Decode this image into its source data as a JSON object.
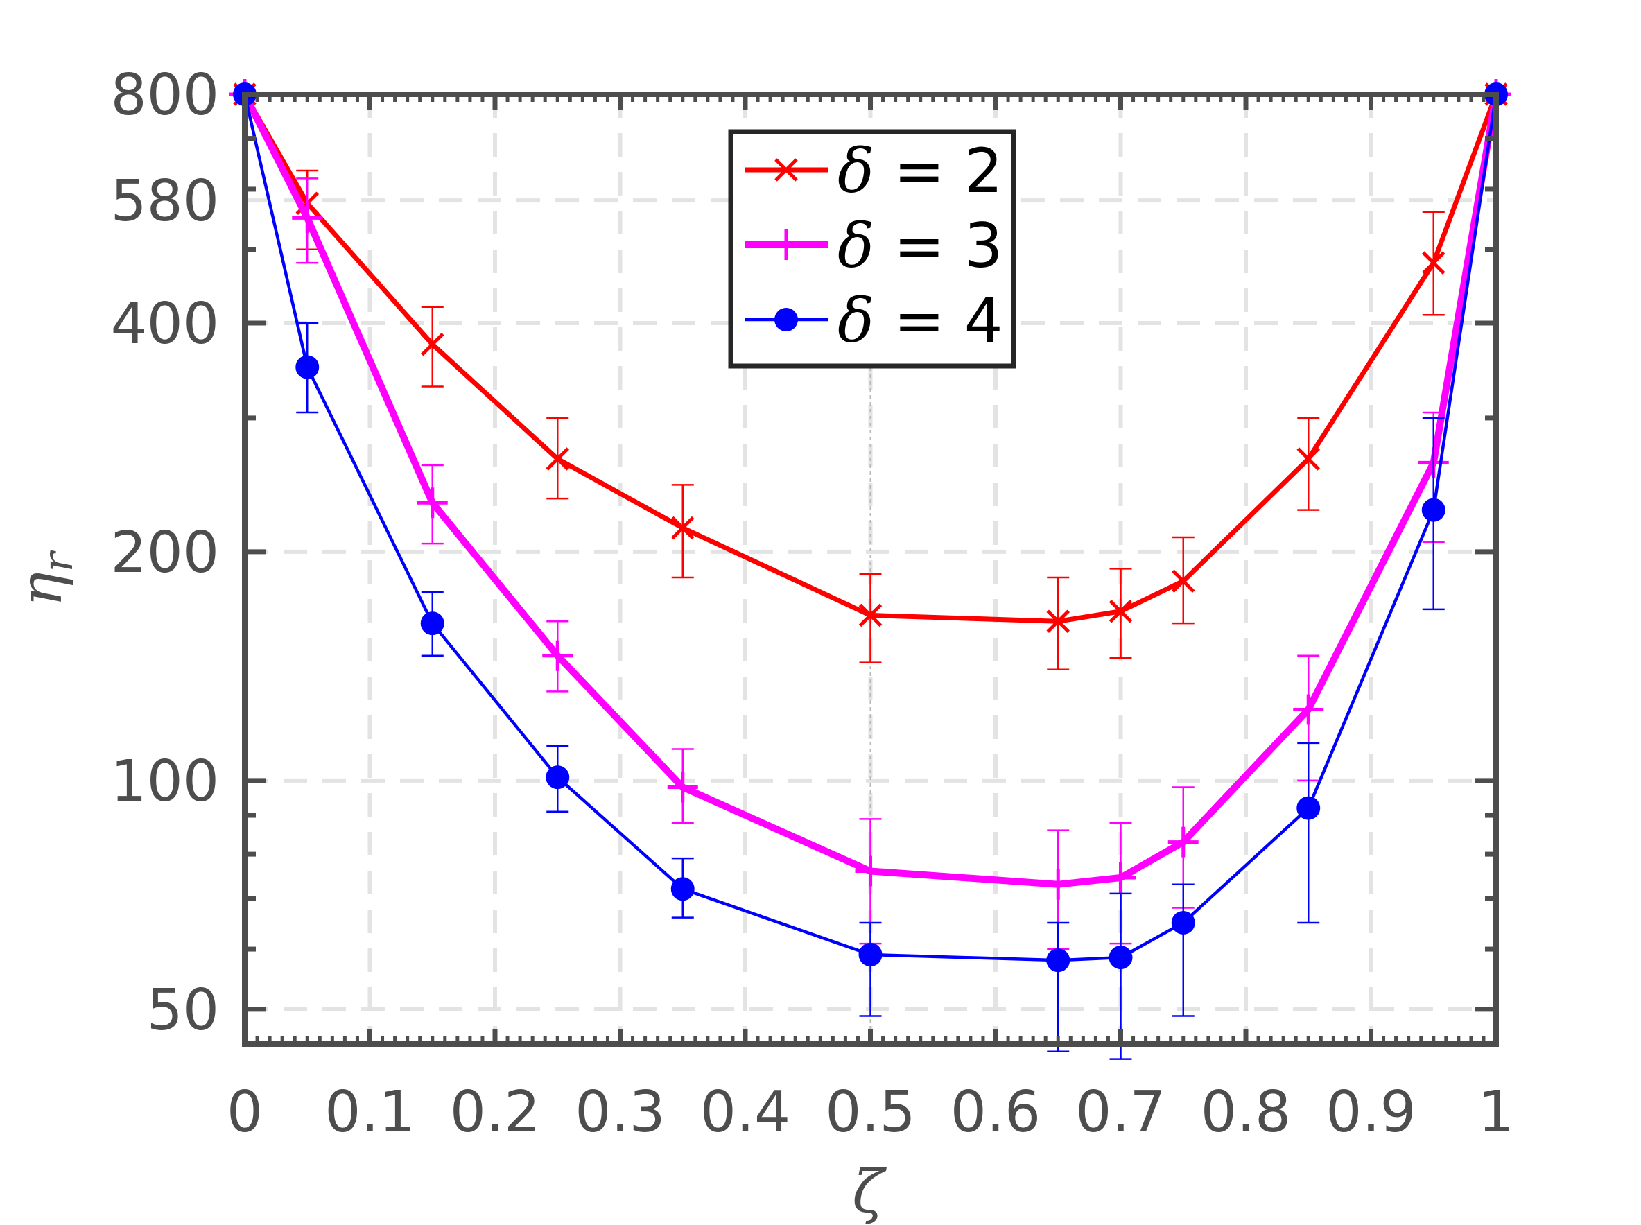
{
  "chart_data": {
    "type": "line",
    "title": "",
    "xlabel": "ζ",
    "ylabel": "ηr",
    "ylabel_parts": {
      "base": "η",
      "sub": "r"
    },
    "xlim": [
      0,
      1
    ],
    "ylim": [
      45,
      800
    ],
    "yscale": "log",
    "grid": true,
    "legend_position": "top-center",
    "xticks": [
      0,
      0.1,
      0.2,
      0.3,
      0.4,
      0.5,
      0.6,
      0.7,
      0.8,
      0.9,
      1
    ],
    "xtick_labels": [
      "0",
      "0.1",
      "0.2",
      "0.3",
      "0.4",
      "0.5",
      "0.6",
      "0.7",
      "0.8",
      "0.9",
      "1"
    ],
    "yticks": [
      50,
      100,
      200,
      400,
      580,
      800
    ],
    "ytick_labels": [
      "50",
      "100",
      "200",
      "400",
      "580",
      "800"
    ],
    "x": [
      0,
      0.05,
      0.15,
      0.25,
      0.35,
      0.5,
      0.65,
      0.7,
      0.75,
      0.85,
      0.95,
      1
    ],
    "series": [
      {
        "name": "δ = 2",
        "legend_symbol": "δ",
        "legend_value": "= 2",
        "color": "#ff0000",
        "marker": "x",
        "values": [
          800,
          575,
          375,
          265,
          215,
          165,
          162,
          167,
          183,
          265,
          480,
          800
        ],
        "err_low": [
          800,
          500,
          330,
          235,
          185,
          143,
          140,
          145,
          161,
          227,
          410,
          800
        ],
        "err_high": [
          800,
          635,
          420,
          300,
          245,
          187,
          185,
          190,
          209,
          300,
          560,
          800
        ]
      },
      {
        "name": "δ = 3",
        "legend_symbol": "δ",
        "legend_value": "= 3",
        "color": "#ff00ff",
        "marker": "+",
        "values": [
          800,
          550,
          232,
          146,
          98,
          76,
          73,
          74.5,
          83,
          124,
          262,
          800
        ],
        "err_low": [
          800,
          480,
          205,
          131,
          88,
          61,
          60,
          61,
          68,
          100,
          206,
          800
        ],
        "err_high": [
          800,
          620,
          260,
          162,
          110,
          89,
          86,
          88,
          98,
          146,
          305,
          800
        ]
      },
      {
        "name": "δ = 4",
        "legend_symbol": "δ",
        "legend_value": "= 4",
        "color": "#0000ff",
        "marker": "o",
        "values": [
          800,
          350,
          161,
          101,
          72,
          59,
          58,
          58.5,
          65,
          92,
          227,
          800
        ],
        "err_low": [
          800,
          305,
          146,
          91,
          66,
          49,
          44,
          43,
          49,
          65,
          168,
          800
        ],
        "err_high": [
          800,
          400,
          177,
          111,
          79,
          65,
          65,
          71,
          73,
          112,
          300,
          800
        ]
      }
    ]
  }
}
